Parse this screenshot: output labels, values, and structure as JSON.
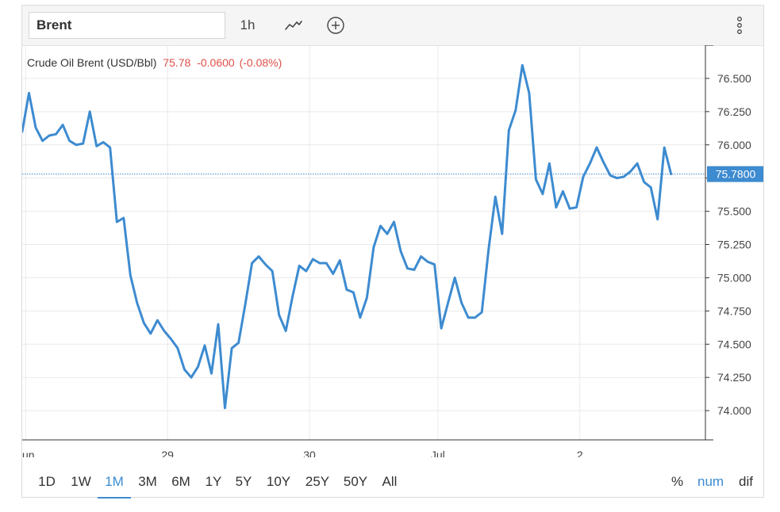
{
  "toolbar": {
    "symbol_value": "Brent",
    "interval_label": "1h",
    "chart_type_icon": "line-chart-icon",
    "add_icon": "plus-circle-icon",
    "menu_icon": "vertical-dots-icon"
  },
  "info": {
    "name": "Crude Oil Brent (USD/Bbl)",
    "last": "75.78",
    "change": "-0.0600",
    "change_pct": "(-0.08%)"
  },
  "colors": {
    "line": "#3d8bd0",
    "negative": "#e0504a",
    "price_tag": "#3d8bd0",
    "grid": "#e9e9e9"
  },
  "chart_data": {
    "type": "line",
    "title": "Crude Oil Brent (USD/Bbl)",
    "xlabel": "",
    "ylabel": "",
    "x_ticks": [
      {
        "label": "Jun",
        "index": 0.5
      },
      {
        "label": "29",
        "index": 21.5
      },
      {
        "label": "30",
        "index": 42.5
      },
      {
        "label": "Jul",
        "index": 61.5
      },
      {
        "label": "2",
        "index": 82.5
      }
    ],
    "y_ticks": [
      "74.000",
      "74.250",
      "74.500",
      "74.750",
      "75.000",
      "75.250",
      "75.500",
      "75.750",
      "76.000",
      "76.250",
      "76.500"
    ],
    "ylim": [
      73.78,
      76.75
    ],
    "last_price_label": "75.7800",
    "last_price": 75.78,
    "grid": true,
    "series": [
      {
        "values": [
          76.1,
          76.39,
          76.13,
          76.03,
          76.07,
          76.08,
          76.15,
          76.03,
          76.0,
          76.01,
          76.25,
          75.99,
          76.02,
          75.98,
          75.42,
          75.45,
          75.02,
          74.81,
          74.66,
          74.58,
          74.68,
          74.6,
          74.54,
          74.47,
          74.31,
          74.25,
          74.33,
          74.49,
          74.28,
          74.65,
          74.02,
          74.47,
          74.51,
          74.8,
          75.11,
          75.16,
          75.1,
          75.05,
          74.72,
          74.6,
          74.86,
          75.09,
          75.05,
          75.14,
          75.11,
          75.11,
          75.03,
          75.13,
          74.91,
          74.89,
          74.7,
          74.85,
          75.23,
          75.39,
          75.33,
          75.42,
          75.2,
          75.07,
          75.06,
          75.16,
          75.12,
          75.1,
          74.62,
          74.81,
          75.0,
          74.81,
          74.7,
          74.7,
          74.74,
          75.21,
          75.61,
          75.33,
          76.11,
          76.26,
          76.6,
          76.39,
          75.74,
          75.63,
          75.86,
          75.53,
          75.65,
          75.52,
          75.53,
          75.76,
          75.86,
          75.98,
          75.87,
          75.77,
          75.75,
          75.76,
          75.8,
          75.86,
          75.72,
          75.68,
          75.44,
          75.98,
          75.78
        ]
      }
    ]
  },
  "ranges": [
    "1D",
    "1W",
    "1M",
    "3M",
    "6M",
    "1Y",
    "5Y",
    "10Y",
    "25Y",
    "50Y",
    "All"
  ],
  "active_range": "1M",
  "modes": [
    "%",
    "num",
    "dif"
  ],
  "active_mode": "num"
}
